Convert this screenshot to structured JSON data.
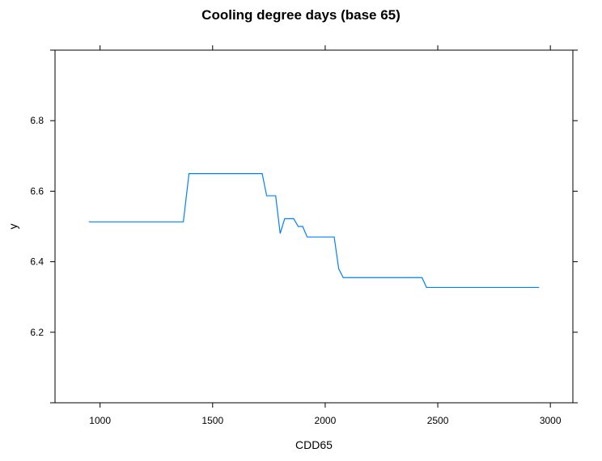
{
  "chart_data": {
    "type": "line",
    "title": "Cooling degree days (base 65)",
    "xlabel": "CDD65",
    "ylabel": "y",
    "xlim": [
      800,
      3100
    ],
    "ylim": [
      6.0,
      7.0
    ],
    "x_ticks": [
      1000,
      1500,
      2000,
      2500,
      3000
    ],
    "x_tick_labels": [
      "1000",
      "1500",
      "2000",
      "2500",
      "3000"
    ],
    "y_ticks": [
      6.2,
      6.4,
      6.6,
      6.8
    ],
    "y_tick_labels": [
      "6.2",
      "6.4",
      "6.6",
      "6.8"
    ],
    "grid": false,
    "line_color": "#0080ff",
    "series": [
      {
        "x": [
          950,
          1370,
          1395,
          1720,
          1740,
          1780,
          1800,
          1820,
          1860,
          1880,
          1900,
          1920,
          2040,
          2060,
          2080,
          2430,
          2450,
          2950
        ],
        "y": [
          6.513,
          6.513,
          6.65,
          6.65,
          6.587,
          6.587,
          6.48,
          6.522,
          6.522,
          6.5,
          6.5,
          6.47,
          6.47,
          6.38,
          6.355,
          6.355,
          6.327,
          6.327
        ]
      }
    ]
  }
}
